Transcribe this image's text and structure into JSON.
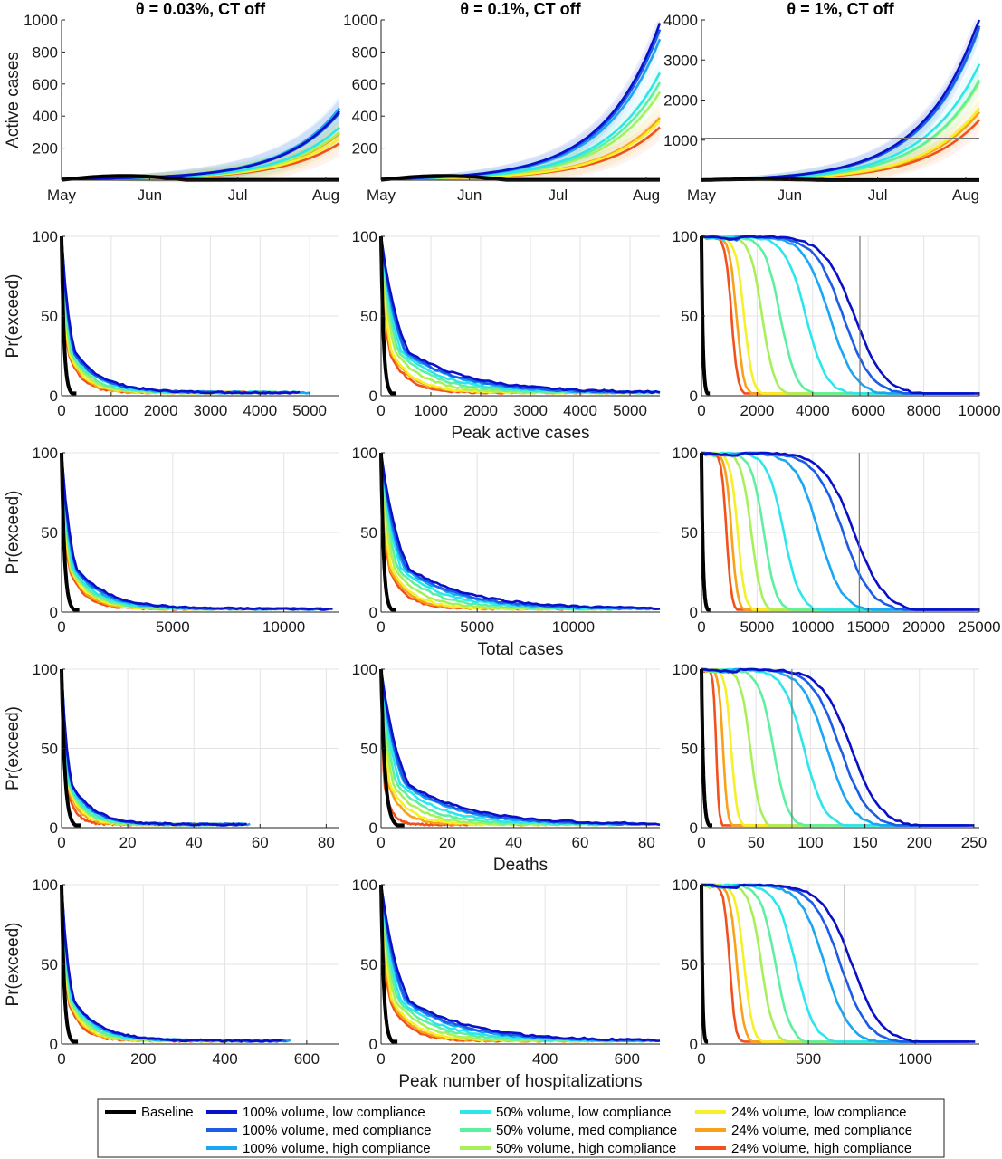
{
  "figure": {
    "column_titles": [
      "θ = 0.03%, CT off",
      "θ = 0.1%, CT off",
      "θ = 1%, CT off"
    ],
    "row_xlabels": [
      "",
      "Peak active cases",
      "Total cases",
      "Deaths",
      "Peak number of hospitalizations"
    ],
    "ylabel_active": "Active cases",
    "ylabel_pr": "Pr(exceed)"
  },
  "legend": [
    {
      "label": "Baseline",
      "color": "#000000"
    },
    {
      "label": "100% volume, low compliance",
      "color": "#0a10c8"
    },
    {
      "label": "100% volume, med compliance",
      "color": "#1c5ce6"
    },
    {
      "label": "100% volume, high compliance",
      "color": "#1aa6f2"
    },
    {
      "label": "50% volume, low compliance",
      "color": "#2ce6ec"
    },
    {
      "label": "50% volume, med compliance",
      "color": "#5ef0a0"
    },
    {
      "label": "50% volume, high compliance",
      "color": "#a8f05a"
    },
    {
      "label": "24% volume, low compliance",
      "color": "#f5f028"
    },
    {
      "label": "24% volume, med compliance",
      "color": "#f7a21a"
    },
    {
      "label": "24% volume, high compliance",
      "color": "#f2501c"
    }
  ],
  "chart_data": [
    {
      "type": "line",
      "row": 0,
      "col": 0,
      "title": "θ = 0.03%, CT off",
      "ylabel": "Active cases",
      "xlabel": "",
      "x_ticks": [
        "May",
        "Jun",
        "Jul",
        "Aug"
      ],
      "y_ticks": [
        200,
        400,
        600,
        800,
        1000
      ],
      "ylim": [
        0,
        1000
      ],
      "grid": false,
      "series_end_values": [
        0,
        430,
        420,
        450,
        330,
        330,
        300,
        260,
        290,
        230
      ],
      "threshold": null
    },
    {
      "type": "line",
      "row": 0,
      "col": 1,
      "title": "θ = 0.1%, CT off",
      "ylabel": "",
      "xlabel": "",
      "x_ticks": [
        "May",
        "Jun",
        "Jul",
        "Aug"
      ],
      "y_ticks": [
        200,
        400,
        600,
        800,
        1000
      ],
      "ylim": [
        0,
        1000
      ],
      "grid": false,
      "series_end_values": [
        0,
        980,
        940,
        880,
        670,
        610,
        550,
        370,
        390,
        330
      ],
      "threshold": null
    },
    {
      "type": "line",
      "row": 0,
      "col": 2,
      "title": "θ = 1%, CT off",
      "ylabel": "",
      "xlabel": "",
      "x_ticks": [
        "May",
        "Jun",
        "Jul",
        "Aug"
      ],
      "y_ticks": [
        1000,
        2000,
        3000,
        4000
      ],
      "ylim": [
        0,
        4000
      ],
      "grid": false,
      "series_end_values": [
        0,
        4050,
        3850,
        3800,
        2900,
        2500,
        2450,
        1800,
        1700,
        1500
      ],
      "threshold": 1050
    },
    {
      "type": "line",
      "row": 1,
      "col": 0,
      "ylabel": "Pr(exceed)",
      "xlabel": "",
      "x_ticks": [
        0,
        1000,
        2000,
        3000,
        4000,
        5000
      ],
      "y_ticks": [
        0,
        50,
        100
      ],
      "xlim": [
        0,
        5600
      ],
      "ylim": [
        0,
        100
      ],
      "grid": true,
      "series_max_x": [
        300,
        4800,
        4600,
        5000,
        4900,
        4500,
        4200,
        3900,
        3800,
        3700
      ],
      "series_tail_pct": [
        0,
        1.5,
        1.5,
        1.5,
        1.5,
        1.5,
        1.5,
        1.5,
        1.5,
        1.5
      ],
      "threshold": null
    },
    {
      "type": "line",
      "row": 1,
      "col": 1,
      "ylabel": "",
      "xlabel": "Peak active cases",
      "x_ticks": [
        0,
        1000,
        2000,
        3000,
        4000,
        5000
      ],
      "y_ticks": [
        0,
        50,
        100
      ],
      "xlim": [
        0,
        5600
      ],
      "ylim": [
        0,
        100
      ],
      "grid": true,
      "series_max_x": [
        300,
        5600,
        5500,
        5500,
        5600,
        5400,
        5100,
        4600,
        4700,
        4500
      ],
      "series_tail_pct": [
        0,
        2,
        2,
        2,
        2,
        2,
        2,
        2,
        2,
        2
      ],
      "threshold": null
    },
    {
      "type": "line",
      "row": 1,
      "col": 2,
      "ylabel": "",
      "xlabel": "",
      "x_ticks": [
        0,
        2000,
        4000,
        6000,
        8000,
        10000
      ],
      "y_ticks": [
        0,
        50,
        100
      ],
      "xlim": [
        0,
        10000
      ],
      "ylim": [
        0,
        100
      ],
      "grid": true,
      "series_max_x": [
        300,
        10000,
        9800,
        9600,
        9400,
        8600,
        7800,
        7300,
        7000,
        7200
      ],
      "series_tail_pct": [
        0,
        2,
        2,
        2,
        2,
        2,
        2,
        2,
        2,
        2
      ],
      "threshold": 5700
    },
    {
      "type": "line",
      "row": 2,
      "col": 0,
      "ylabel": "Pr(exceed)",
      "xlabel": "",
      "x_ticks": [
        0,
        5000,
        10000
      ],
      "y_ticks": [
        0,
        50,
        100
      ],
      "xlim": [
        0,
        12500
      ],
      "ylim": [
        0,
        100
      ],
      "grid": true,
      "series_max_x": [
        800,
        12200,
        12000,
        11800,
        11500,
        11000,
        10500,
        10000,
        9800,
        9500
      ],
      "series_tail_pct": [
        0,
        2,
        2,
        2,
        2,
        2,
        2,
        2,
        2,
        2
      ],
      "threshold": null
    },
    {
      "type": "line",
      "row": 2,
      "col": 1,
      "ylabel": "",
      "xlabel": "Total cases",
      "x_ticks": [
        0,
        5000,
        10000
      ],
      "y_ticks": [
        0,
        50,
        100
      ],
      "xlim": [
        0,
        14500
      ],
      "ylim": [
        0,
        100
      ],
      "grid": true,
      "series_max_x": [
        800,
        14500,
        14200,
        14000,
        14300,
        13500,
        12500,
        11500,
        11200,
        11000
      ],
      "series_tail_pct": [
        0,
        2,
        2,
        2,
        2,
        2,
        2,
        2,
        2,
        2
      ],
      "threshold": null
    },
    {
      "type": "line",
      "row": 2,
      "col": 2,
      "ylabel": "",
      "xlabel": "",
      "x_ticks": [
        0,
        5000,
        10000,
        15000,
        20000,
        25000
      ],
      "y_ticks": [
        0,
        50,
        100
      ],
      "xlim": [
        0,
        25000
      ],
      "ylim": [
        0,
        100
      ],
      "grid": true,
      "series_max_x": [
        800,
        25000,
        24500,
        22000,
        18500,
        17000,
        16000,
        15500,
        15000,
        15000
      ],
      "series_tail_pct": [
        0,
        2,
        2,
        2,
        2,
        2,
        2,
        2,
        2,
        2
      ],
      "threshold": 14200
    },
    {
      "type": "line",
      "row": 3,
      "col": 0,
      "ylabel": "Pr(exceed)",
      "xlabel": "",
      "x_ticks": [
        0,
        20,
        40,
        60,
        80
      ],
      "y_ticks": [
        0,
        50,
        100
      ],
      "xlim": [
        0,
        84
      ],
      "ylim": [
        0,
        100
      ],
      "grid": true,
      "series_max_x": [
        6,
        56,
        55,
        57,
        55,
        52,
        50,
        46,
        44,
        36
      ],
      "series_tail_pct": [
        0,
        2,
        2,
        2,
        2,
        2,
        2,
        2,
        2,
        2
      ],
      "threshold": null
    },
    {
      "type": "line",
      "row": 3,
      "col": 1,
      "ylabel": "",
      "xlabel": "Deaths",
      "x_ticks": [
        0,
        20,
        40,
        60,
        80
      ],
      "y_ticks": [
        0,
        50,
        100
      ],
      "xlim": [
        0,
        84
      ],
      "ylim": [
        0,
        100
      ],
      "grid": true,
      "series_max_x": [
        7,
        84,
        83,
        82,
        80,
        72,
        65,
        58,
        50,
        27
      ],
      "series_tail_pct": [
        0,
        2,
        2,
        2,
        2,
        2,
        2,
        2,
        2,
        2
      ],
      "threshold": null
    },
    {
      "type": "line",
      "row": 3,
      "col": 2,
      "ylabel": "",
      "xlabel": "",
      "x_ticks": [
        0,
        50,
        100,
        150,
        200,
        250
      ],
      "y_ticks": [
        0,
        50,
        100
      ],
      "xlim": [
        0,
        255
      ],
      "ylim": [
        0,
        100
      ],
      "grid": true,
      "series_max_x": [
        10,
        250,
        245,
        240,
        235,
        200,
        160,
        130,
        110,
        90
      ],
      "series_tail_pct": [
        0,
        2,
        2,
        2,
        2,
        2,
        2,
        2,
        2,
        2
      ],
      "threshold": 83
    },
    {
      "type": "line",
      "row": 4,
      "col": 0,
      "ylabel": "Pr(exceed)",
      "xlabel": "",
      "x_ticks": [
        0,
        200,
        400,
        600
      ],
      "y_ticks": [
        0,
        50,
        100
      ],
      "xlim": [
        0,
        680
      ],
      "ylim": [
        0,
        100
      ],
      "grid": true,
      "series_max_x": [
        40,
        540,
        550,
        560,
        560,
        530,
        500,
        470,
        470,
        460
      ],
      "series_tail_pct": [
        0,
        2,
        2,
        2,
        2,
        2,
        2,
        2,
        2,
        2
      ],
      "threshold": null
    },
    {
      "type": "line",
      "row": 4,
      "col": 1,
      "ylabel": "",
      "xlabel": "Peak number of hospitalizations",
      "x_ticks": [
        0,
        200,
        400,
        600
      ],
      "y_ticks": [
        0,
        50,
        100
      ],
      "xlim": [
        0,
        680
      ],
      "ylim": [
        0,
        100
      ],
      "grid": true,
      "series_max_x": [
        40,
        680,
        670,
        665,
        660,
        640,
        610,
        590,
        580,
        560
      ],
      "series_tail_pct": [
        0,
        2,
        2,
        2,
        2,
        2,
        2,
        2,
        2,
        2
      ],
      "threshold": null
    },
    {
      "type": "line",
      "row": 4,
      "col": 2,
      "ylabel": "",
      "xlabel": "",
      "x_ticks": [
        0,
        500,
        1000
      ],
      "y_ticks": [
        0,
        50,
        100
      ],
      "xlim": [
        0,
        1300
      ],
      "ylim": [
        0,
        100
      ],
      "grid": true,
      "series_max_x": [
        30,
        1280,
        1250,
        1200,
        1100,
        1050,
        1000,
        950,
        920,
        880
      ],
      "series_tail_pct": [
        0,
        2,
        2,
        2,
        2,
        2,
        2,
        2,
        2,
        2
      ],
      "threshold": 670
    }
  ]
}
